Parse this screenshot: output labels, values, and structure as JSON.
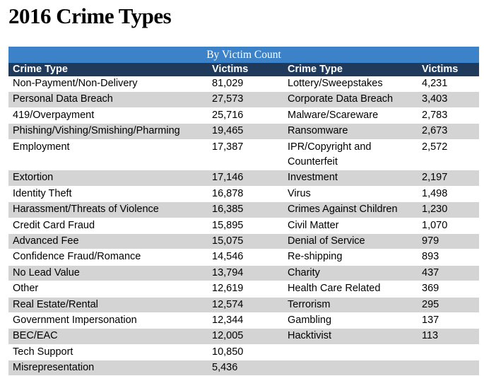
{
  "title": "2016 Crime Types",
  "table": {
    "caption": "By Victim Count",
    "headers": [
      "Crime Type",
      "Victims",
      "Crime Type",
      "Victims"
    ],
    "rows": [
      [
        "Non-Payment/Non-Delivery",
        "81,029",
        "Lottery/Sweepstakes",
        "4,231"
      ],
      [
        "Personal Data Breach",
        "27,573",
        "Corporate Data Breach",
        "3,403"
      ],
      [
        "419/Overpayment",
        "25,716",
        "Malware/Scareware",
        "2,783"
      ],
      [
        "Phishing/Vishing/Smishing/Pharming",
        "19,465",
        "Ransomware",
        "2,673"
      ],
      [
        "Employment",
        "17,387",
        "IPR/Copyright and Counterfeit",
        "2,572"
      ],
      [
        "Extortion",
        "17,146",
        "Investment",
        "2,197"
      ],
      [
        "Identity Theft",
        "16,878",
        "Virus",
        "1,498"
      ],
      [
        "Harassment/Threats of Violence",
        "16,385",
        "Crimes Against Children",
        "1,230"
      ],
      [
        "Credit Card Fraud",
        "15,895",
        "Civil Matter",
        "1,070"
      ],
      [
        "Advanced Fee",
        "15,075",
        "Denial of Service",
        "979"
      ],
      [
        "Confidence Fraud/Romance",
        "14,546",
        "Re-shipping",
        "893"
      ],
      [
        "No Lead Value",
        "13,794",
        "Charity",
        "437"
      ],
      [
        "Other",
        "12,619",
        "Health Care Related",
        "369"
      ],
      [
        "Real Estate/Rental",
        "12,574",
        "Terrorism",
        "295"
      ],
      [
        "Government Impersonation",
        "12,344",
        "Gambling",
        "137"
      ],
      [
        "BEC/EAC",
        "12,005",
        "Hacktivist",
        "113"
      ],
      [
        "Tech Support",
        "10,850",
        "",
        ""
      ],
      [
        "Misrepresentation",
        "5,436",
        "",
        ""
      ]
    ]
  }
}
